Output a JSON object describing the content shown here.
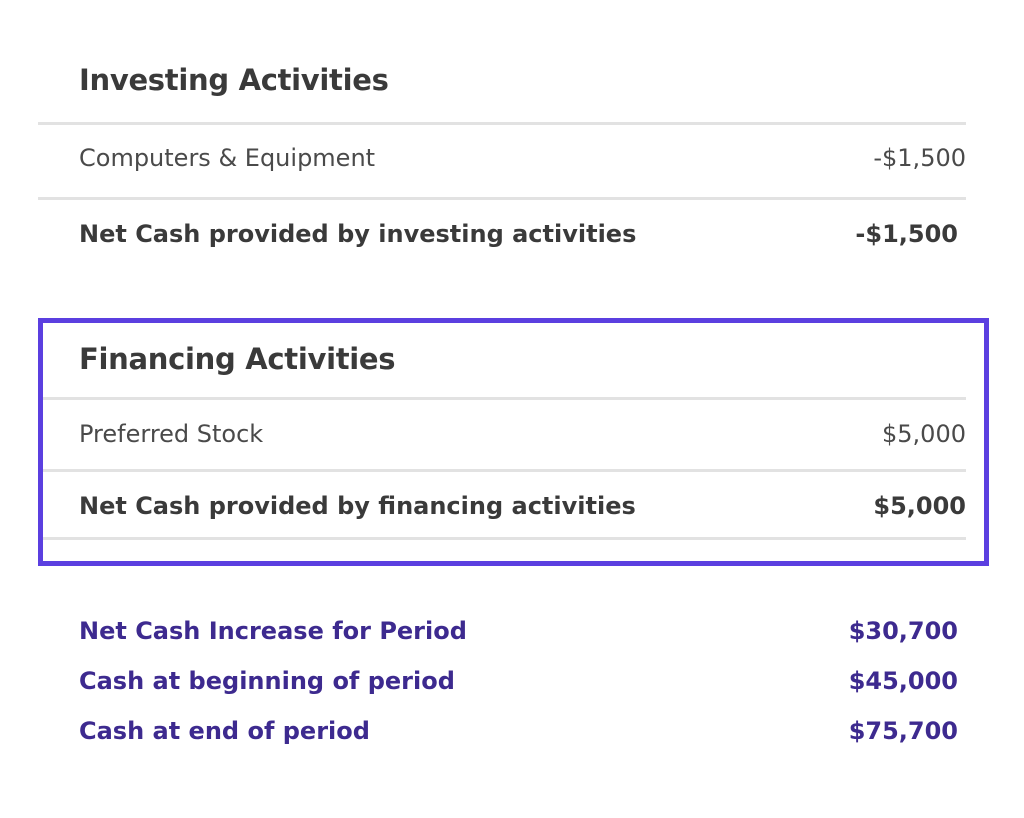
{
  "investing": {
    "title": "Investing Activities",
    "items": [
      {
        "label": "Computers & Equipment",
        "amount": "-$1,500"
      }
    ],
    "net_label": "Net Cash provided by investing activities",
    "net_amount": "-$1,500"
  },
  "financing": {
    "title": "Financing Activities",
    "items": [
      {
        "label": "Preferred Stock",
        "amount": "$5,000"
      }
    ],
    "net_label": "Net Cash provided by financing activities",
    "net_amount": "$5,000",
    "highlight_color": "#5b3fe0"
  },
  "summary": [
    {
      "label": "Net Cash Increase for Period",
      "amount": "$30,700"
    },
    {
      "label": "Cash at beginning of period",
      "amount": "$45,000"
    },
    {
      "label": "Cash at end of period",
      "amount": "$75,700"
    }
  ],
  "colors": {
    "summary_text": "#3d2a8f",
    "heading_text": "#3a3a3a",
    "divider": "#e2e2e2"
  }
}
